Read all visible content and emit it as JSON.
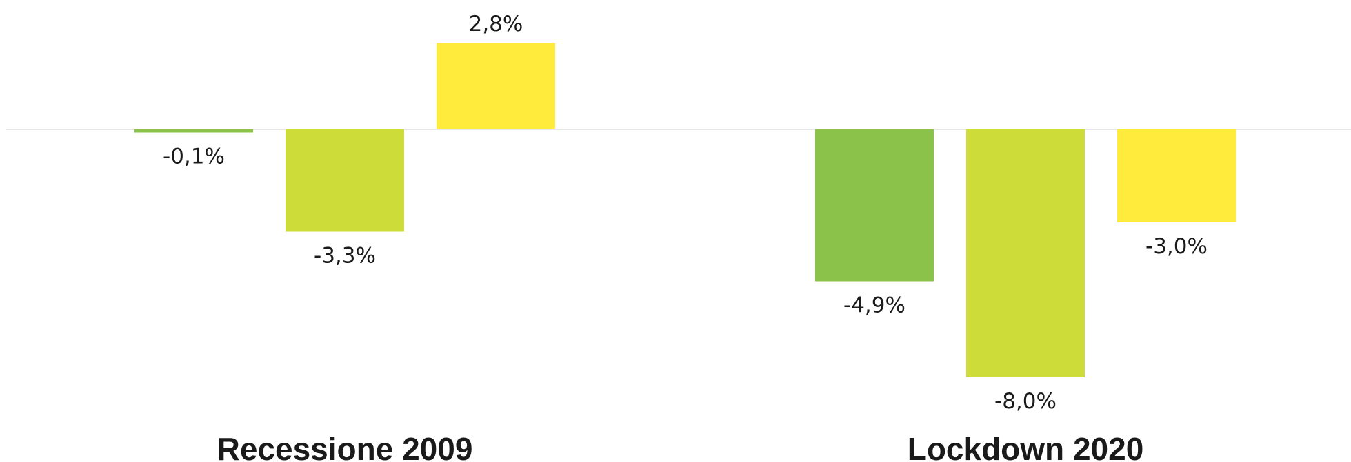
{
  "chart_data": {
    "type": "bar",
    "title": "",
    "xlabel": "",
    "ylabel": "",
    "categories": [
      "Recessione 2009",
      "Lockdown 2020"
    ],
    "series": [
      {
        "color": "#8bc34a",
        "values": [
          -0.1,
          -4.9
        ],
        "labels": [
          "-0,1%",
          "-4,9%"
        ]
      },
      {
        "color": "#cddc39",
        "values": [
          -3.3,
          -8.0
        ],
        "labels": [
          "-3,3%",
          "-8,0%"
        ]
      },
      {
        "color": "#ffeb3b",
        "values": [
          2.8,
          -3.0
        ],
        "labels": [
          "2,8%",
          "-3,0%"
        ]
      }
    ],
    "ylim": [
      -8.0,
      2.8
    ],
    "grid": false,
    "legend": "none"
  }
}
